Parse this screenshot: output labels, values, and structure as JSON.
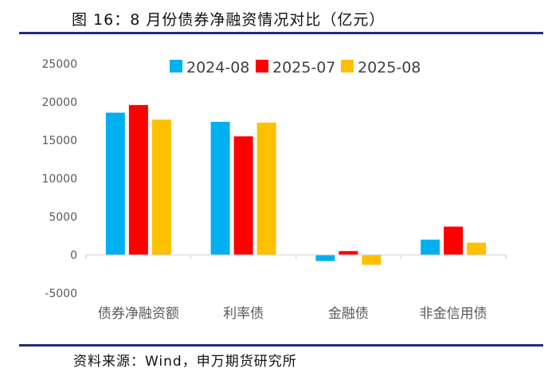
{
  "header": {
    "title": "图 16：8 月份债券净融资情况对比（亿元）"
  },
  "footer": {
    "source": "资料来源：Wind，申万期货研究所"
  },
  "chart_data": {
    "type": "bar",
    "title": "图 16：8 月份债券净融资情况对比（亿元）",
    "xlabel": "",
    "ylabel": "",
    "categories": [
      "债券净融资额",
      "利率债",
      "金融债",
      "非金信用债"
    ],
    "series": [
      {
        "name": "2024-08",
        "color": "#00B0F0",
        "values": [
          18600,
          17400,
          -800,
          2000
        ]
      },
      {
        "name": "2025-07",
        "color": "#FF0000",
        "values": [
          19600,
          15500,
          500,
          3700
        ]
      },
      {
        "name": "2025-08",
        "color": "#FFC000",
        "values": [
          17700,
          17300,
          -1300,
          1600
        ]
      }
    ],
    "ylim": [
      -5000,
      25000
    ],
    "yticks": [
      25000,
      20000,
      15000,
      10000,
      5000,
      0,
      -5000
    ],
    "grid": false,
    "legend_position": "top"
  }
}
